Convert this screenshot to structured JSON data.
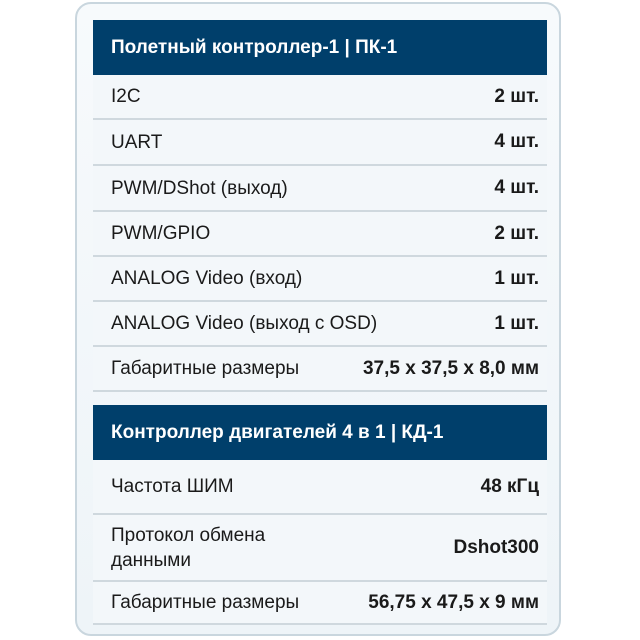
{
  "sections": [
    {
      "title": "Полетный контроллер-1 | ПК-1",
      "rows": [
        {
          "label": "I2C",
          "value": "2 шт."
        },
        {
          "label": "UART",
          "value": "4 шт."
        },
        {
          "label": "PWM/DShot (выход)",
          "value": "4 шт."
        },
        {
          "label": "PWM/GPIO",
          "value": "2 шт."
        },
        {
          "label": "ANALOG Video (вход)",
          "value": "1 шт."
        },
        {
          "label": "ANALOG Video (выход с OSD)",
          "value": "1 шт."
        },
        {
          "label": "Габаритные размеры",
          "value": "37,5 x 37,5 x 8,0 мм"
        }
      ]
    },
    {
      "title": "Контроллер двигателей 4 в 1 | КД-1",
      "rows": [
        {
          "label": "Частота ШИМ",
          "value": "48 кГц"
        },
        {
          "label": "Протокол обмена данными",
          "value": "Dshot300"
        },
        {
          "label": "Габаритные размеры",
          "value": "56,75 x 47,5 x 9 мм"
        }
      ]
    }
  ]
}
